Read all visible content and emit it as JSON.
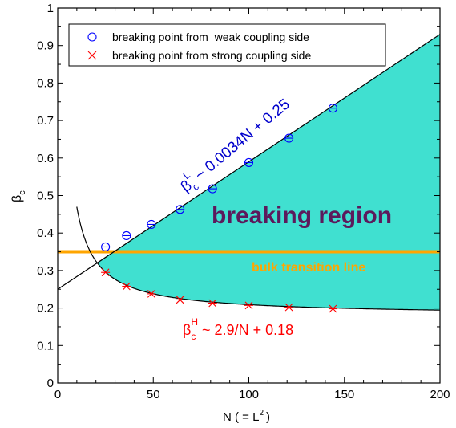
{
  "chart_data": {
    "type": "scatter",
    "xlabel": "N ( = L",
    "xlabel_sup": "2",
    "xlabel_end": ")",
    "ylabel": "β",
    "ylabel_sub": "c",
    "xlim": [
      0,
      200
    ],
    "ylim": [
      0,
      1
    ],
    "x_ticks": [
      0,
      50,
      100,
      150,
      200
    ],
    "y_ticks": [
      0,
      0.1,
      0.2,
      0.3,
      0.4,
      0.5,
      0.6,
      0.7,
      0.8,
      0.9,
      1
    ],
    "y_tick_labels": [
      "0",
      "0.1",
      "0.2",
      "0.3",
      "0.4",
      "0.5",
      "0.6",
      "0.7",
      "0.8",
      "0.9",
      "1"
    ],
    "legend_position": "top-left",
    "series": [
      {
        "name": "breaking point from  weak coupling side",
        "marker": "circle",
        "color": "#0000ff",
        "x": [
          25,
          36,
          49,
          64,
          81,
          100,
          121,
          144
        ],
        "y": [
          0.363,
          0.393,
          0.423,
          0.463,
          0.518,
          0.588,
          0.653,
          0.733
        ]
      },
      {
        "name": "breaking point from strong coupling side",
        "marker": "x",
        "color": "#ff0000",
        "x": [
          25,
          36,
          49,
          64,
          81,
          100,
          121,
          144
        ],
        "y": [
          0.295,
          0.258,
          0.238,
          0.222,
          0.213,
          0.207,
          0.202,
          0.198
        ]
      }
    ],
    "fits": {
      "low": {
        "slope": 0.0034,
        "intercept": 0.25,
        "color": "#000000",
        "label_main": "β",
        "label_sub": "c",
        "label_sup": "L",
        "label_rest": " ~ 0.0034N + 0.25",
        "label_color": "#0000cc"
      },
      "high": {
        "a": 2.9,
        "b": 0.18,
        "color": "#000000",
        "label_main": "β",
        "label_sub": "c",
        "label_sup": "H",
        "label_rest": " ~ 2.9/N + 0.18",
        "label_color": "#ff0000"
      }
    },
    "bulk_transition": {
      "y": 0.35,
      "label": "bulk transition line",
      "color": "#ffa500"
    },
    "region": {
      "label": "breaking region",
      "fill": "#40e0d0",
      "label_color": "#5c1a5c"
    }
  }
}
